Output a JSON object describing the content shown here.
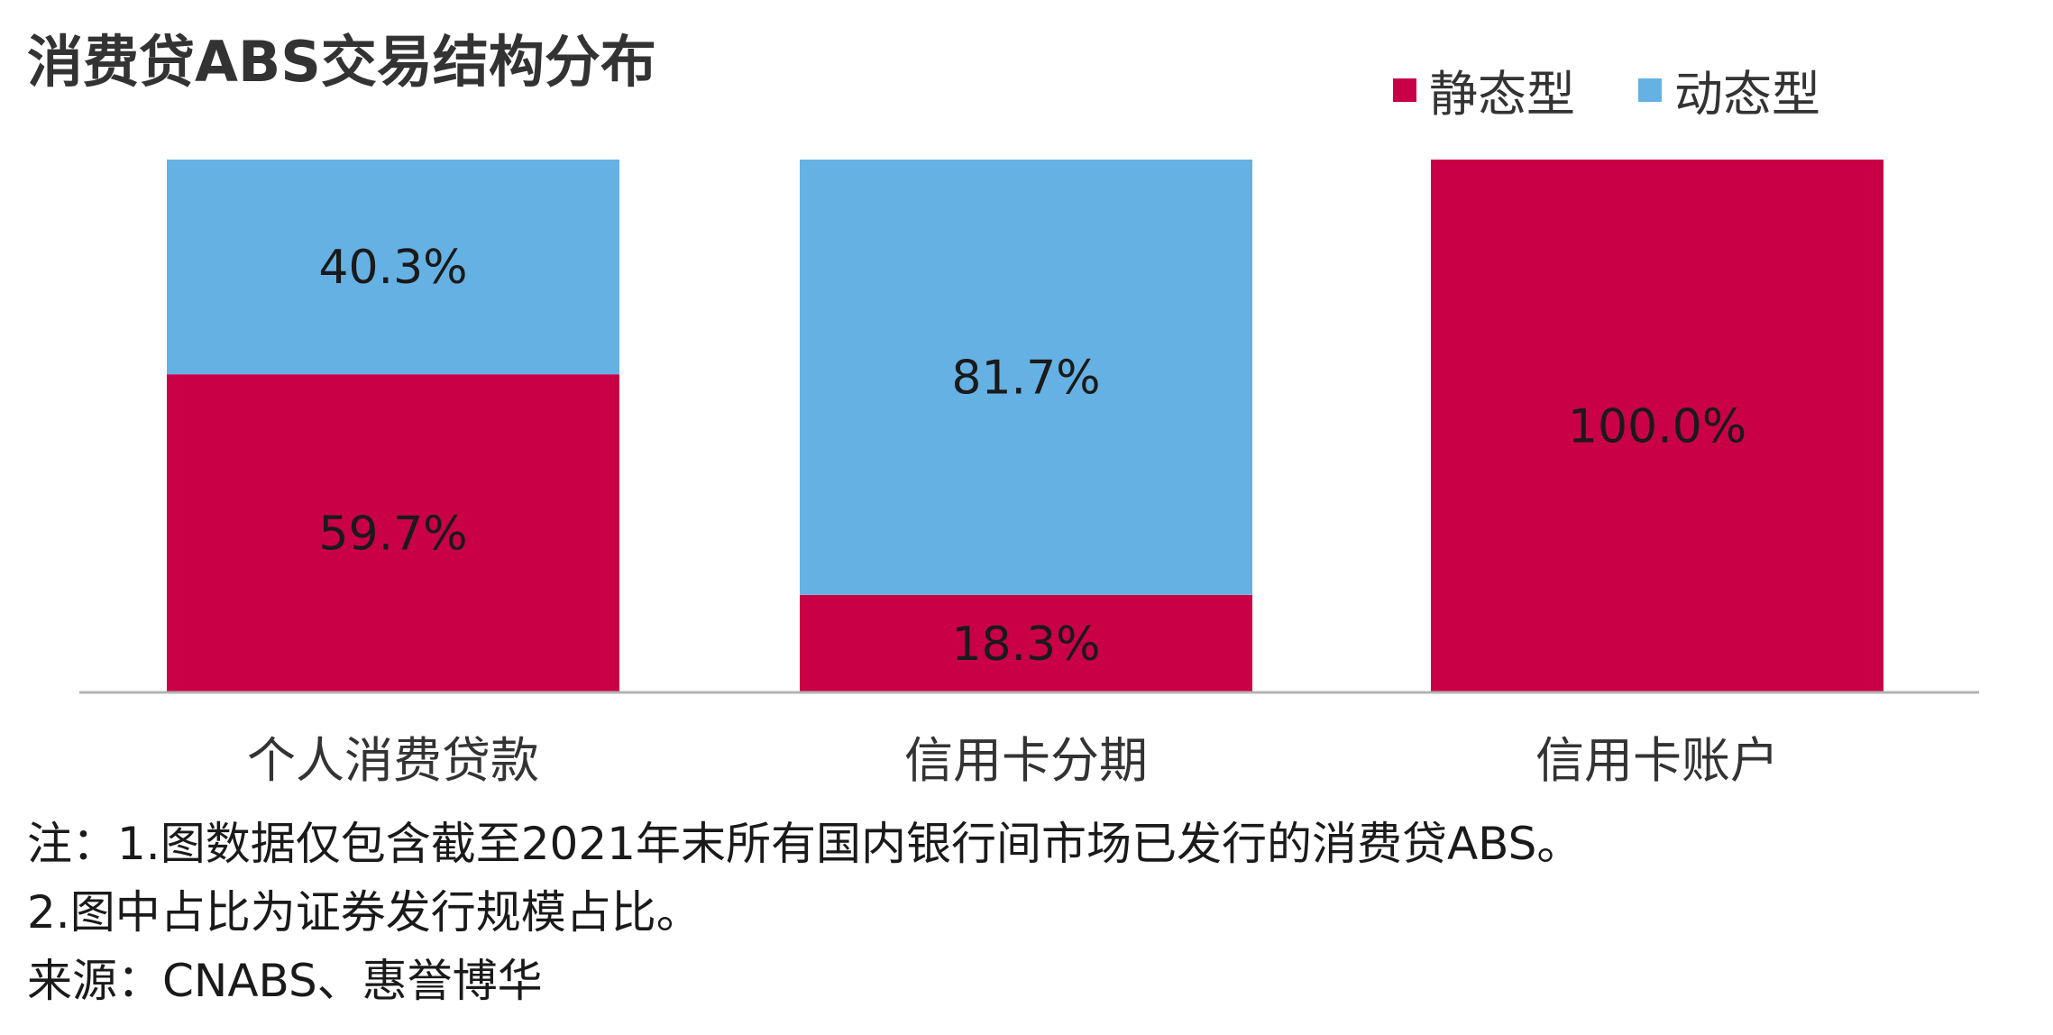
{
  "title": "消费贷ABS交易结构分布",
  "legend": [
    {
      "label": "静态型",
      "color": "#c90046"
    },
    {
      "label": "动态型",
      "color": "#65b1e3"
    }
  ],
  "chart_data": {
    "type": "bar",
    "stacked": true,
    "categories": [
      "个人消费贷款",
      "信用卡分期",
      "信用卡账户"
    ],
    "series": [
      {
        "name": "静态型",
        "values": [
          59.7,
          18.3,
          100.0
        ],
        "labels": [
          "59.7%",
          "18.3%",
          "100.0%"
        ],
        "color": "#c90046"
      },
      {
        "name": "动态型",
        "values": [
          40.3,
          81.7,
          0
        ],
        "labels": [
          "40.3%",
          "81.7%",
          ""
        ],
        "color": "#65b1e3"
      }
    ],
    "ylim": [
      0,
      100
    ],
    "grid": false,
    "legend_position": "top-right"
  },
  "notes": [
    "注：1.图数据仅包含截至2021年末所有国内银行间市场已发行的消费贷ABS。",
    "2.图中占比为证券发行规模占比。",
    "来源：CNABS、惠誉博华"
  ]
}
